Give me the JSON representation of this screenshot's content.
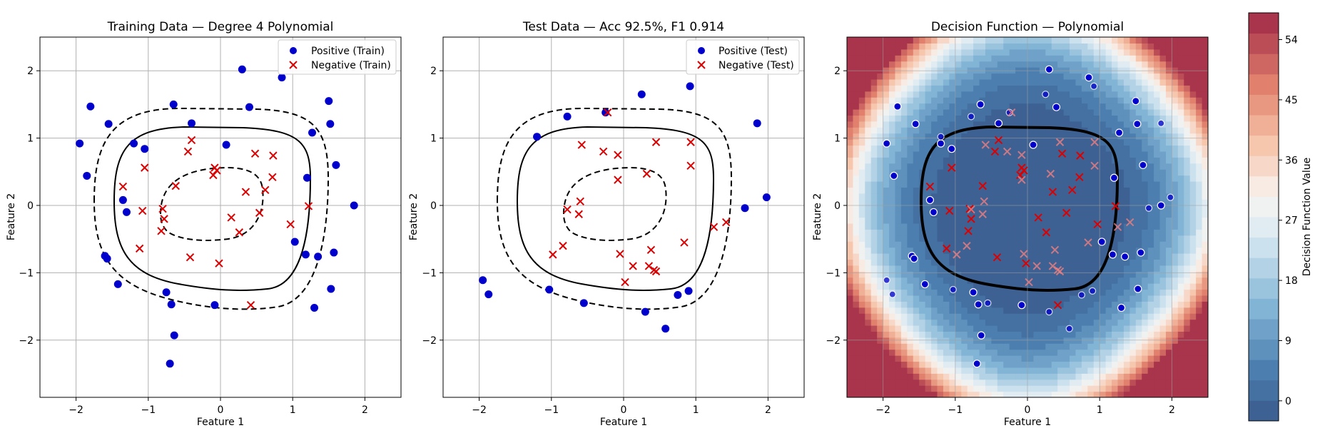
{
  "chart_data": [
    {
      "type": "scatter",
      "title": "Training Data — Degree 4 Polynomial",
      "xlabel": "Feature 1",
      "ylabel": "Feature 2",
      "xlim": [
        -2.5,
        2.5
      ],
      "ylim": [
        -2.85,
        2.5
      ],
      "xticks": [
        -2,
        -1,
        0,
        1,
        2
      ],
      "yticks": [
        -2,
        -1,
        0,
        1,
        2
      ],
      "grid": true,
      "legend": "top-right",
      "series": [
        {
          "name": "Positive (Train)",
          "marker": "circle",
          "color": "#0000cc",
          "points": [
            [
              -1.95,
              0.92
            ],
            [
              -1.8,
              1.47
            ],
            [
              -1.85,
              0.44
            ],
            [
              -1.55,
              1.21
            ],
            [
              -1.2,
              0.92
            ],
            [
              -1.05,
              0.84
            ],
            [
              -0.65,
              1.5
            ],
            [
              -0.4,
              1.22
            ],
            [
              0.3,
              2.02
            ],
            [
              0.4,
              1.46
            ],
            [
              0.85,
              1.9
            ],
            [
              1.5,
              1.55
            ],
            [
              1.52,
              1.21
            ],
            [
              1.27,
              1.08
            ],
            [
              1.6,
              0.6
            ],
            [
              0.08,
              0.9
            ],
            [
              1.85,
              0.0
            ],
            [
              1.2,
              0.41
            ],
            [
              -1.35,
              0.08
            ],
            [
              -1.3,
              -0.1
            ],
            [
              -1.6,
              -0.75
            ],
            [
              -1.57,
              -0.79
            ],
            [
              -1.42,
              -1.17
            ],
            [
              -0.75,
              -1.29
            ],
            [
              -0.68,
              -1.47
            ],
            [
              -0.64,
              -1.93
            ],
            [
              -0.7,
              -2.35
            ],
            [
              -0.08,
              -1.48
            ],
            [
              1.03,
              -0.54
            ],
            [
              1.18,
              -0.73
            ],
            [
              1.35,
              -0.76
            ],
            [
              1.57,
              -0.7
            ],
            [
              1.53,
              -1.24
            ],
            [
              1.3,
              -1.52
            ]
          ]
        },
        {
          "name": "Negative (Train)",
          "marker": "x",
          "color": "#dd0000",
          "points": [
            [
              -1.35,
              0.28
            ],
            [
              -1.05,
              0.56
            ],
            [
              -0.62,
              0.29
            ],
            [
              -0.45,
              0.8
            ],
            [
              -0.4,
              0.97
            ],
            [
              -0.1,
              0.45
            ],
            [
              -0.08,
              0.56
            ],
            [
              -0.05,
              0.52
            ],
            [
              0.48,
              0.77
            ],
            [
              0.73,
              0.74
            ],
            [
              0.72,
              0.42
            ],
            [
              0.62,
              0.23
            ],
            [
              0.35,
              0.2
            ],
            [
              -1.08,
              -0.08
            ],
            [
              -0.8,
              -0.05
            ],
            [
              -0.78,
              -0.2
            ],
            [
              -0.82,
              -0.38
            ],
            [
              -1.12,
              -0.64
            ],
            [
              -0.42,
              -0.77
            ],
            [
              0.15,
              -0.18
            ],
            [
              0.26,
              -0.4
            ],
            [
              0.54,
              -0.11
            ],
            [
              0.97,
              -0.28
            ],
            [
              1.22,
              -0.01
            ],
            [
              -0.02,
              -0.86
            ],
            [
              0.42,
              -1.48
            ]
          ]
        }
      ]
    },
    {
      "type": "scatter",
      "title": "Test Data — Acc 92.5%, F1 0.914",
      "xlabel": "Feature 1",
      "ylabel": "Feature 2",
      "xlim": [
        -2.5,
        2.5
      ],
      "ylim": [
        -2.85,
        2.5
      ],
      "xticks": [
        -2,
        -1,
        0,
        1,
        2
      ],
      "yticks": [
        -2,
        -1,
        0,
        1,
        2
      ],
      "grid": true,
      "legend": "top-right",
      "series": [
        {
          "name": "Positive (Test)",
          "marker": "circle",
          "color": "#0000cc",
          "points": [
            [
              -1.2,
              1.02
            ],
            [
              -0.78,
              1.32
            ],
            [
              -0.25,
              1.38
            ],
            [
              0.25,
              1.65
            ],
            [
              0.92,
              1.77
            ],
            [
              1.85,
              1.22
            ],
            [
              1.68,
              -0.04
            ],
            [
              1.98,
              0.12
            ],
            [
              -1.95,
              -1.11
            ],
            [
              -1.87,
              -1.32
            ],
            [
              -1.03,
              -1.25
            ],
            [
              -0.55,
              -1.45
            ],
            [
              0.3,
              -1.58
            ],
            [
              0.58,
              -1.83
            ],
            [
              0.75,
              -1.33
            ],
            [
              0.9,
              -1.27
            ]
          ]
        },
        {
          "name": "Negative (Test)",
          "marker": "x",
          "color": "#dd0000",
          "points": [
            [
              -0.58,
              0.9
            ],
            [
              -0.28,
              0.8
            ],
            [
              -0.08,
              0.75
            ],
            [
              0.45,
              0.94
            ],
            [
              0.93,
              0.94
            ],
            [
              0.93,
              0.59
            ],
            [
              -0.08,
              0.38
            ],
            [
              0.32,
              0.47
            ],
            [
              -0.6,
              0.06
            ],
            [
              -0.78,
              -0.06
            ],
            [
              -0.62,
              -0.13
            ],
            [
              -0.98,
              -0.73
            ],
            [
              -0.84,
              -0.6
            ],
            [
              -0.05,
              -0.72
            ],
            [
              0.13,
              -0.9
            ],
            [
              0.38,
              -0.66
            ],
            [
              0.35,
              -0.9
            ],
            [
              0.42,
              -0.96
            ],
            [
              0.45,
              -0.98
            ],
            [
              0.02,
              -1.14
            ],
            [
              0.84,
              -0.55
            ],
            [
              1.25,
              -0.32
            ],
            [
              1.42,
              -0.25
            ],
            [
              -0.22,
              1.38
            ]
          ]
        }
      ]
    },
    {
      "type": "heatmap",
      "title": "Decision Function — Polynomial",
      "xlabel": "Feature 1",
      "ylabel": "Feature 2",
      "xlim": [
        -2.5,
        2.5
      ],
      "ylim": [
        -2.85,
        2.5
      ],
      "xticks": [
        -2,
        -1,
        0,
        1,
        2
      ],
      "yticks": [
        -2,
        -1,
        0,
        1,
        2
      ],
      "grid": true,
      "colorbar": {
        "label": "Decision Function Value",
        "range": [
          -3,
          58
        ],
        "ticks": [
          0,
          9,
          18,
          27,
          36,
          45,
          54
        ],
        "levels": 20,
        "colormap": "RdBu_r"
      }
    }
  ]
}
